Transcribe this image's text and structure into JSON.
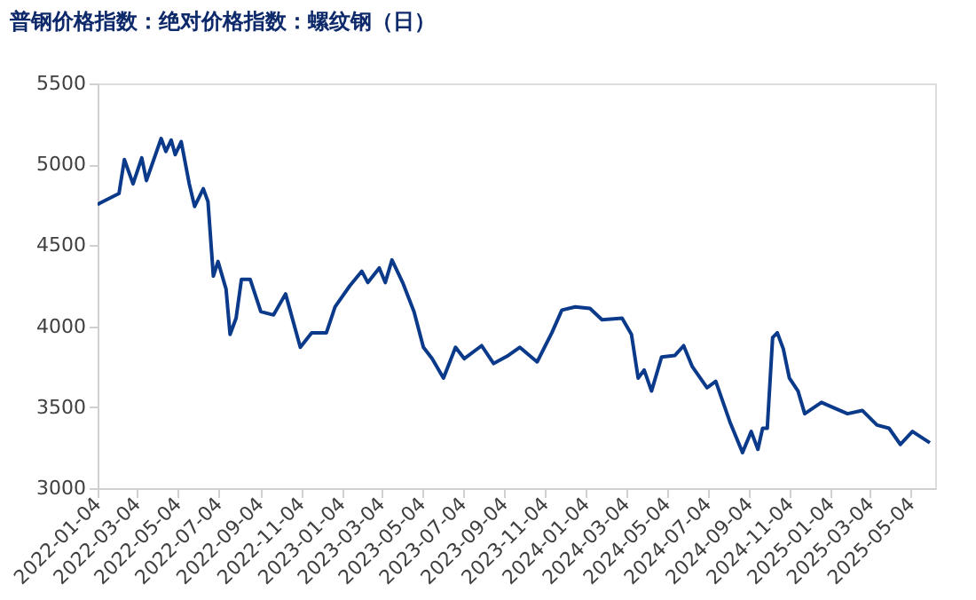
{
  "chart_data": {
    "type": "line",
    "title": "普钢价格指数：绝对价格指数：螺纹钢（日）",
    "x": [
      "2022-01-04",
      "2022-01-07",
      "2022-02-05",
      "2022-02-13",
      "2022-02-26",
      "2022-03-11",
      "2022-03-18",
      "2022-04-09",
      "2022-04-16",
      "2022-04-24",
      "2022-04-30",
      "2022-05-09",
      "2022-05-21",
      "2022-05-29",
      "2022-06-11",
      "2022-06-18",
      "2022-06-26",
      "2022-07-03",
      "2022-07-15",
      "2022-07-21",
      "2022-07-30",
      "2022-08-07",
      "2022-08-20",
      "2022-09-05",
      "2022-09-24",
      "2022-10-12",
      "2022-11-03",
      "2022-11-20",
      "2022-12-12",
      "2022-12-25",
      "2023-01-16",
      "2023-02-03",
      "2023-02-12",
      "2023-03-01",
      "2023-03-10",
      "2023-03-20",
      "2023-04-05",
      "2023-04-22",
      "2023-05-06",
      "2023-05-19",
      "2023-06-05",
      "2023-06-23",
      "2023-07-06",
      "2023-08-01",
      "2023-08-19",
      "2023-09-10",
      "2023-09-27",
      "2023-10-23",
      "2023-11-14",
      "2023-11-29",
      "2023-12-19",
      "2024-01-10",
      "2024-01-28",
      "2024-02-27",
      "2024-03-12",
      "2024-03-22",
      "2024-03-31",
      "2024-04-11",
      "2024-04-26",
      "2024-05-16",
      "2024-05-29",
      "2024-06-11",
      "2024-07-03",
      "2024-07-16",
      "2024-08-07",
      "2024-08-25",
      "2024-09-07",
      "2024-09-17",
      "2024-09-24",
      "2024-10-01",
      "2024-10-09",
      "2024-10-16",
      "2024-10-25",
      "2024-11-03",
      "2024-11-16",
      "2024-11-26",
      "2024-12-21",
      "2025-01-12",
      "2025-01-29",
      "2025-02-20",
      "2025-03-14",
      "2025-04-01",
      "2025-04-18",
      "2025-05-06",
      "2025-06-01"
    ],
    "series": [
      {
        "color": "#0b3a8a",
        "values": [
          4750,
          4760,
          4820,
          5030,
          4880,
          5040,
          4900,
          5160,
          5080,
          5150,
          5060,
          5140,
          4880,
          4740,
          4850,
          4770,
          4310,
          4400,
          4230,
          3950,
          4050,
          4290,
          4290,
          4090,
          4070,
          4200,
          3870,
          3960,
          3960,
          4120,
          4250,
          4340,
          4270,
          4360,
          4270,
          4410,
          4270,
          4090,
          3870,
          3800,
          3680,
          3870,
          3800,
          3880,
          3770,
          3820,
          3870,
          3780,
          3960,
          4100,
          4120,
          4110,
          4040,
          4050,
          3950,
          3680,
          3730,
          3600,
          3810,
          3820,
          3880,
          3750,
          3620,
          3660,
          3400,
          3220,
          3350,
          3240,
          3370,
          3370,
          3930,
          3960,
          3860,
          3680,
          3600,
          3460,
          3530,
          3490,
          3460,
          3480,
          3390,
          3370,
          3270,
          3350,
          3280
        ]
      }
    ],
    "xlim": [
      "2022-01-04",
      "2025-06-09"
    ],
    "xticks": [
      "2022-01-04",
      "2022-03-04",
      "2022-05-04",
      "2022-07-04",
      "2022-09-04",
      "2022-11-04",
      "2023-01-04",
      "2023-03-04",
      "2023-05-04",
      "2023-07-04",
      "2023-09-04",
      "2023-11-04",
      "2024-01-04",
      "2024-03-04",
      "2024-05-04",
      "2024-07-04",
      "2024-09-04",
      "2024-11-04",
      "2025-01-04",
      "2025-03-04",
      "2025-05-04"
    ],
    "ylim": [
      3000,
      5500
    ],
    "yticks": [
      3000,
      3500,
      4000,
      4500,
      5000,
      5500
    ],
    "grid": false,
    "marker": "none",
    "line_style": "solid"
  }
}
